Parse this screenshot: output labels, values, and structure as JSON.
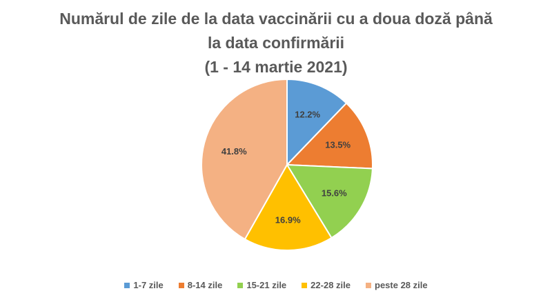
{
  "chart_data": {
    "type": "pie",
    "title_lines": [
      "Numărul de zile de la data vaccinării cu a doua doză până",
      "la data confirmării",
      "(1 - 14 martie 2021)"
    ],
    "categories": [
      "1-7 zile",
      "8-14 zile",
      "15-21 zile",
      "22-28 zile",
      "peste 28 zile"
    ],
    "values": [
      12.2,
      13.5,
      15.6,
      16.9,
      41.8
    ],
    "labels": [
      "12.2%",
      "13.5%",
      "15.6%",
      "16.9%",
      "41.8%"
    ],
    "colors": [
      "#5B9BD5",
      "#ED7D31",
      "#92D050",
      "#FFC000",
      "#F4B183"
    ],
    "legend_position": "bottom",
    "start_angle_deg": 0,
    "direction": "clockwise"
  }
}
